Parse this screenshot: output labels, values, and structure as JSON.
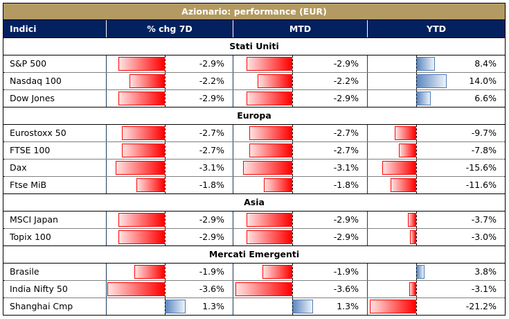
{
  "title": "Azionario: performance (EUR)",
  "headers": [
    "Indici",
    "% chg 7D",
    "MTD",
    "YTD"
  ],
  "colors": {
    "negative": "#ff0000",
    "positive": "#4f7bb8",
    "title_bg": "#b39a62",
    "header_bg": "#03215f"
  },
  "sections": [
    {
      "name": "Stati Uniti",
      "rows": [
        {
          "name": "S&P 500",
          "d7": -2.9,
          "mtd": -2.9,
          "ytd": 8.4
        },
        {
          "name": "Nasdaq 100",
          "d7": -2.2,
          "mtd": -2.2,
          "ytd": 14.0
        },
        {
          "name": "Dow Jones",
          "d7": -2.9,
          "mtd": -2.9,
          "ytd": 6.6
        }
      ]
    },
    {
      "name": "Europa",
      "rows": [
        {
          "name": "Eurostoxx 50",
          "d7": -2.7,
          "mtd": -2.7,
          "ytd": -9.7
        },
        {
          "name": "FTSE 100",
          "d7": -2.7,
          "mtd": -2.7,
          "ytd": -7.8
        },
        {
          "name": "Dax",
          "d7": -3.1,
          "mtd": -3.1,
          "ytd": -15.6
        },
        {
          "name": "Ftse MiB",
          "d7": -1.8,
          "mtd": -1.8,
          "ytd": -11.6
        }
      ]
    },
    {
      "name": "Asia",
      "rows": [
        {
          "name": "MSCI Japan",
          "d7": -2.9,
          "mtd": -2.9,
          "ytd": -3.7
        },
        {
          "name": "Topix 100",
          "d7": -2.9,
          "mtd": -2.9,
          "ytd": -3.0
        }
      ]
    },
    {
      "name": "Mercati Emergenti",
      "rows": [
        {
          "name": "Brasile",
          "d7": -1.9,
          "mtd": -1.9,
          "ytd": 3.8
        },
        {
          "name": "India Nifty 50",
          "d7": -3.6,
          "mtd": -3.6,
          "ytd": -3.1
        },
        {
          "name": "Shanghai Cmp",
          "d7": 1.3,
          "mtd": 1.3,
          "ytd": -21.2
        }
      ]
    }
  ]
}
